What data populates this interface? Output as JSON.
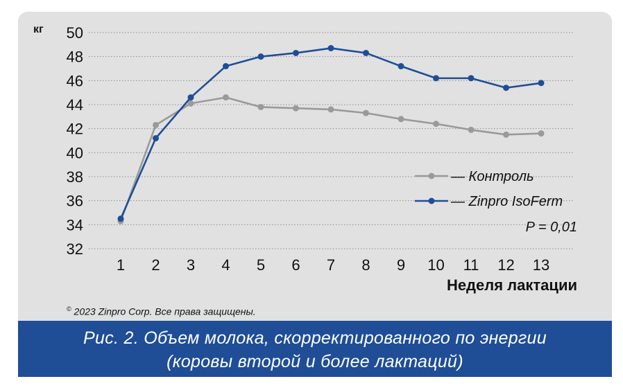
{
  "chart_data": {
    "type": "line",
    "ylabel": "кг",
    "xlabel": "Неделя лактации",
    "categories": [
      "1",
      "2",
      "3",
      "4",
      "5",
      "6",
      "7",
      "8",
      "9",
      "10",
      "11",
      "12",
      "13"
    ],
    "ylim": [
      32,
      50
    ],
    "yticks": [
      32,
      34,
      36,
      38,
      40,
      42,
      44,
      46,
      48,
      50
    ],
    "grid": "horizontal-dotted",
    "legend_position": "bottom-right",
    "series": [
      {
        "name": "— Контроль",
        "color": "#9a9a9a",
        "values": [
          34.3,
          42.3,
          44.1,
          44.6,
          43.8,
          43.7,
          43.6,
          43.3,
          42.8,
          42.4,
          41.9,
          41.5,
          41.6
        ]
      },
      {
        "name": "— Zinpro IsoFerm",
        "color": "#1f4e96",
        "values": [
          34.5,
          41.2,
          44.6,
          47.2,
          48.0,
          48.3,
          48.7,
          48.3,
          47.2,
          46.2,
          46.2,
          45.4,
          45.8
        ]
      }
    ],
    "annotation": "P = 0,01"
  },
  "copyright": {
    "mark": "©",
    "text": "2023 Zinpro Corp. Все права защищены."
  },
  "caption": {
    "line1": "Рис. 2. Объем молока, скорректированного по энергии",
    "line2": "(коровы второй и более лактаций)"
  }
}
